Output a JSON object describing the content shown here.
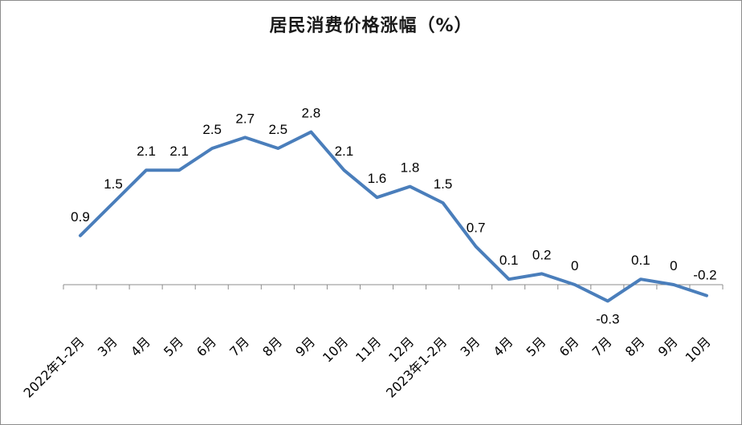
{
  "chart_data": {
    "type": "line",
    "title": "居民消费价格涨幅（%）",
    "categories": [
      "2022年1-2月",
      "3月",
      "4月",
      "5月",
      "6月",
      "7月",
      "8月",
      "9月",
      "10月",
      "11月",
      "12月",
      "2023年1-2月",
      "3月",
      "4月",
      "5月",
      "6月",
      "7月",
      "8月",
      "9月",
      "10月"
    ],
    "values": [
      0.9,
      1.5,
      2.1,
      2.1,
      2.5,
      2.7,
      2.5,
      2.8,
      2.1,
      1.6,
      1.8,
      1.5,
      0.7,
      0.1,
      0.2,
      0,
      -0.3,
      0.1,
      0,
      -0.2
    ],
    "data_labels": [
      "0.9",
      "1.5",
      "2.1",
      "2.1",
      "2.5",
      "2.7",
      "2.5",
      "2.8",
      "2.1",
      "1.6",
      "1.8",
      "1.5",
      "0.7",
      "0.1",
      "0.2",
      "0",
      "-0.3",
      "0.1",
      "0",
      "-0.2"
    ],
    "line_color": "#4a7ebb",
    "ylim": [
      -0.3,
      2.8
    ],
    "grid": false,
    "legend": "none"
  }
}
